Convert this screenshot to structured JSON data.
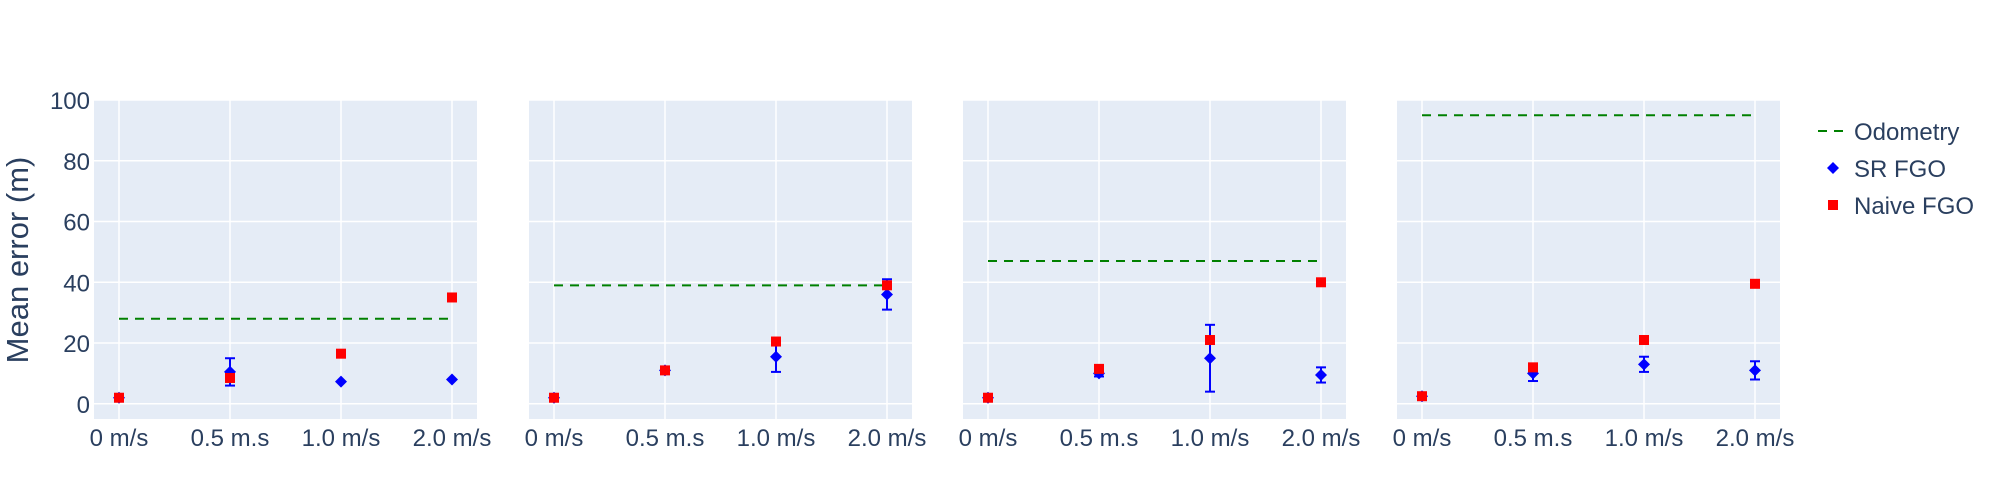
{
  "chart_data": {
    "type": "scatter",
    "ylabel": "Mean error (m)",
    "ylim": [
      -5,
      100
    ],
    "y_ticks": [
      "0",
      "20",
      "40",
      "60",
      "80",
      "100"
    ],
    "y_tick_values": [
      0,
      20,
      40,
      60,
      80,
      100
    ],
    "categories": [
      "0 m/s",
      "0.5 m.s",
      "1.0 m/s",
      "2.0 m/s"
    ],
    "grid": true,
    "legend_position": "right",
    "legend": [
      {
        "label": "Odometry",
        "symbol": "dash",
        "color": "#008000"
      },
      {
        "label": "SR FGO",
        "symbol": "diamond",
        "color": "#0000ff"
      },
      {
        "label": "Naive FGO",
        "symbol": "square",
        "color": "#ff0000"
      }
    ],
    "panels": [
      {
        "odometry": 28,
        "sr_fgo": [
          {
            "y": 2,
            "err": 0
          },
          {
            "y": 10.5,
            "err": 4.5
          },
          {
            "y": 7.3,
            "err": 0
          },
          {
            "y": 8,
            "err": 0
          }
        ],
        "naive_fgo": [
          2,
          8.5,
          16.5,
          35
        ]
      },
      {
        "odometry": 39,
        "sr_fgo": [
          {
            "y": 2,
            "err": 0
          },
          {
            "y": 11,
            "err": 0
          },
          {
            "y": 15.5,
            "err": 5
          },
          {
            "y": 36,
            "err": 5
          }
        ],
        "naive_fgo": [
          2,
          11,
          20.5,
          39
        ]
      },
      {
        "odometry": 47,
        "sr_fgo": [
          {
            "y": 2,
            "err": 0
          },
          {
            "y": 10,
            "err": 1
          },
          {
            "y": 15,
            "err": 11
          },
          {
            "y": 9.5,
            "err": 2.5
          }
        ],
        "naive_fgo": [
          2,
          11.5,
          21,
          40
        ]
      },
      {
        "odometry": 95,
        "sr_fgo": [
          {
            "y": 2.5,
            "err": 0
          },
          {
            "y": 10,
            "err": 2.5
          },
          {
            "y": 13,
            "err": 2.5
          },
          {
            "y": 11,
            "err": 3
          }
        ],
        "naive_fgo": [
          2.5,
          12,
          21,
          39.5
        ]
      }
    ]
  }
}
